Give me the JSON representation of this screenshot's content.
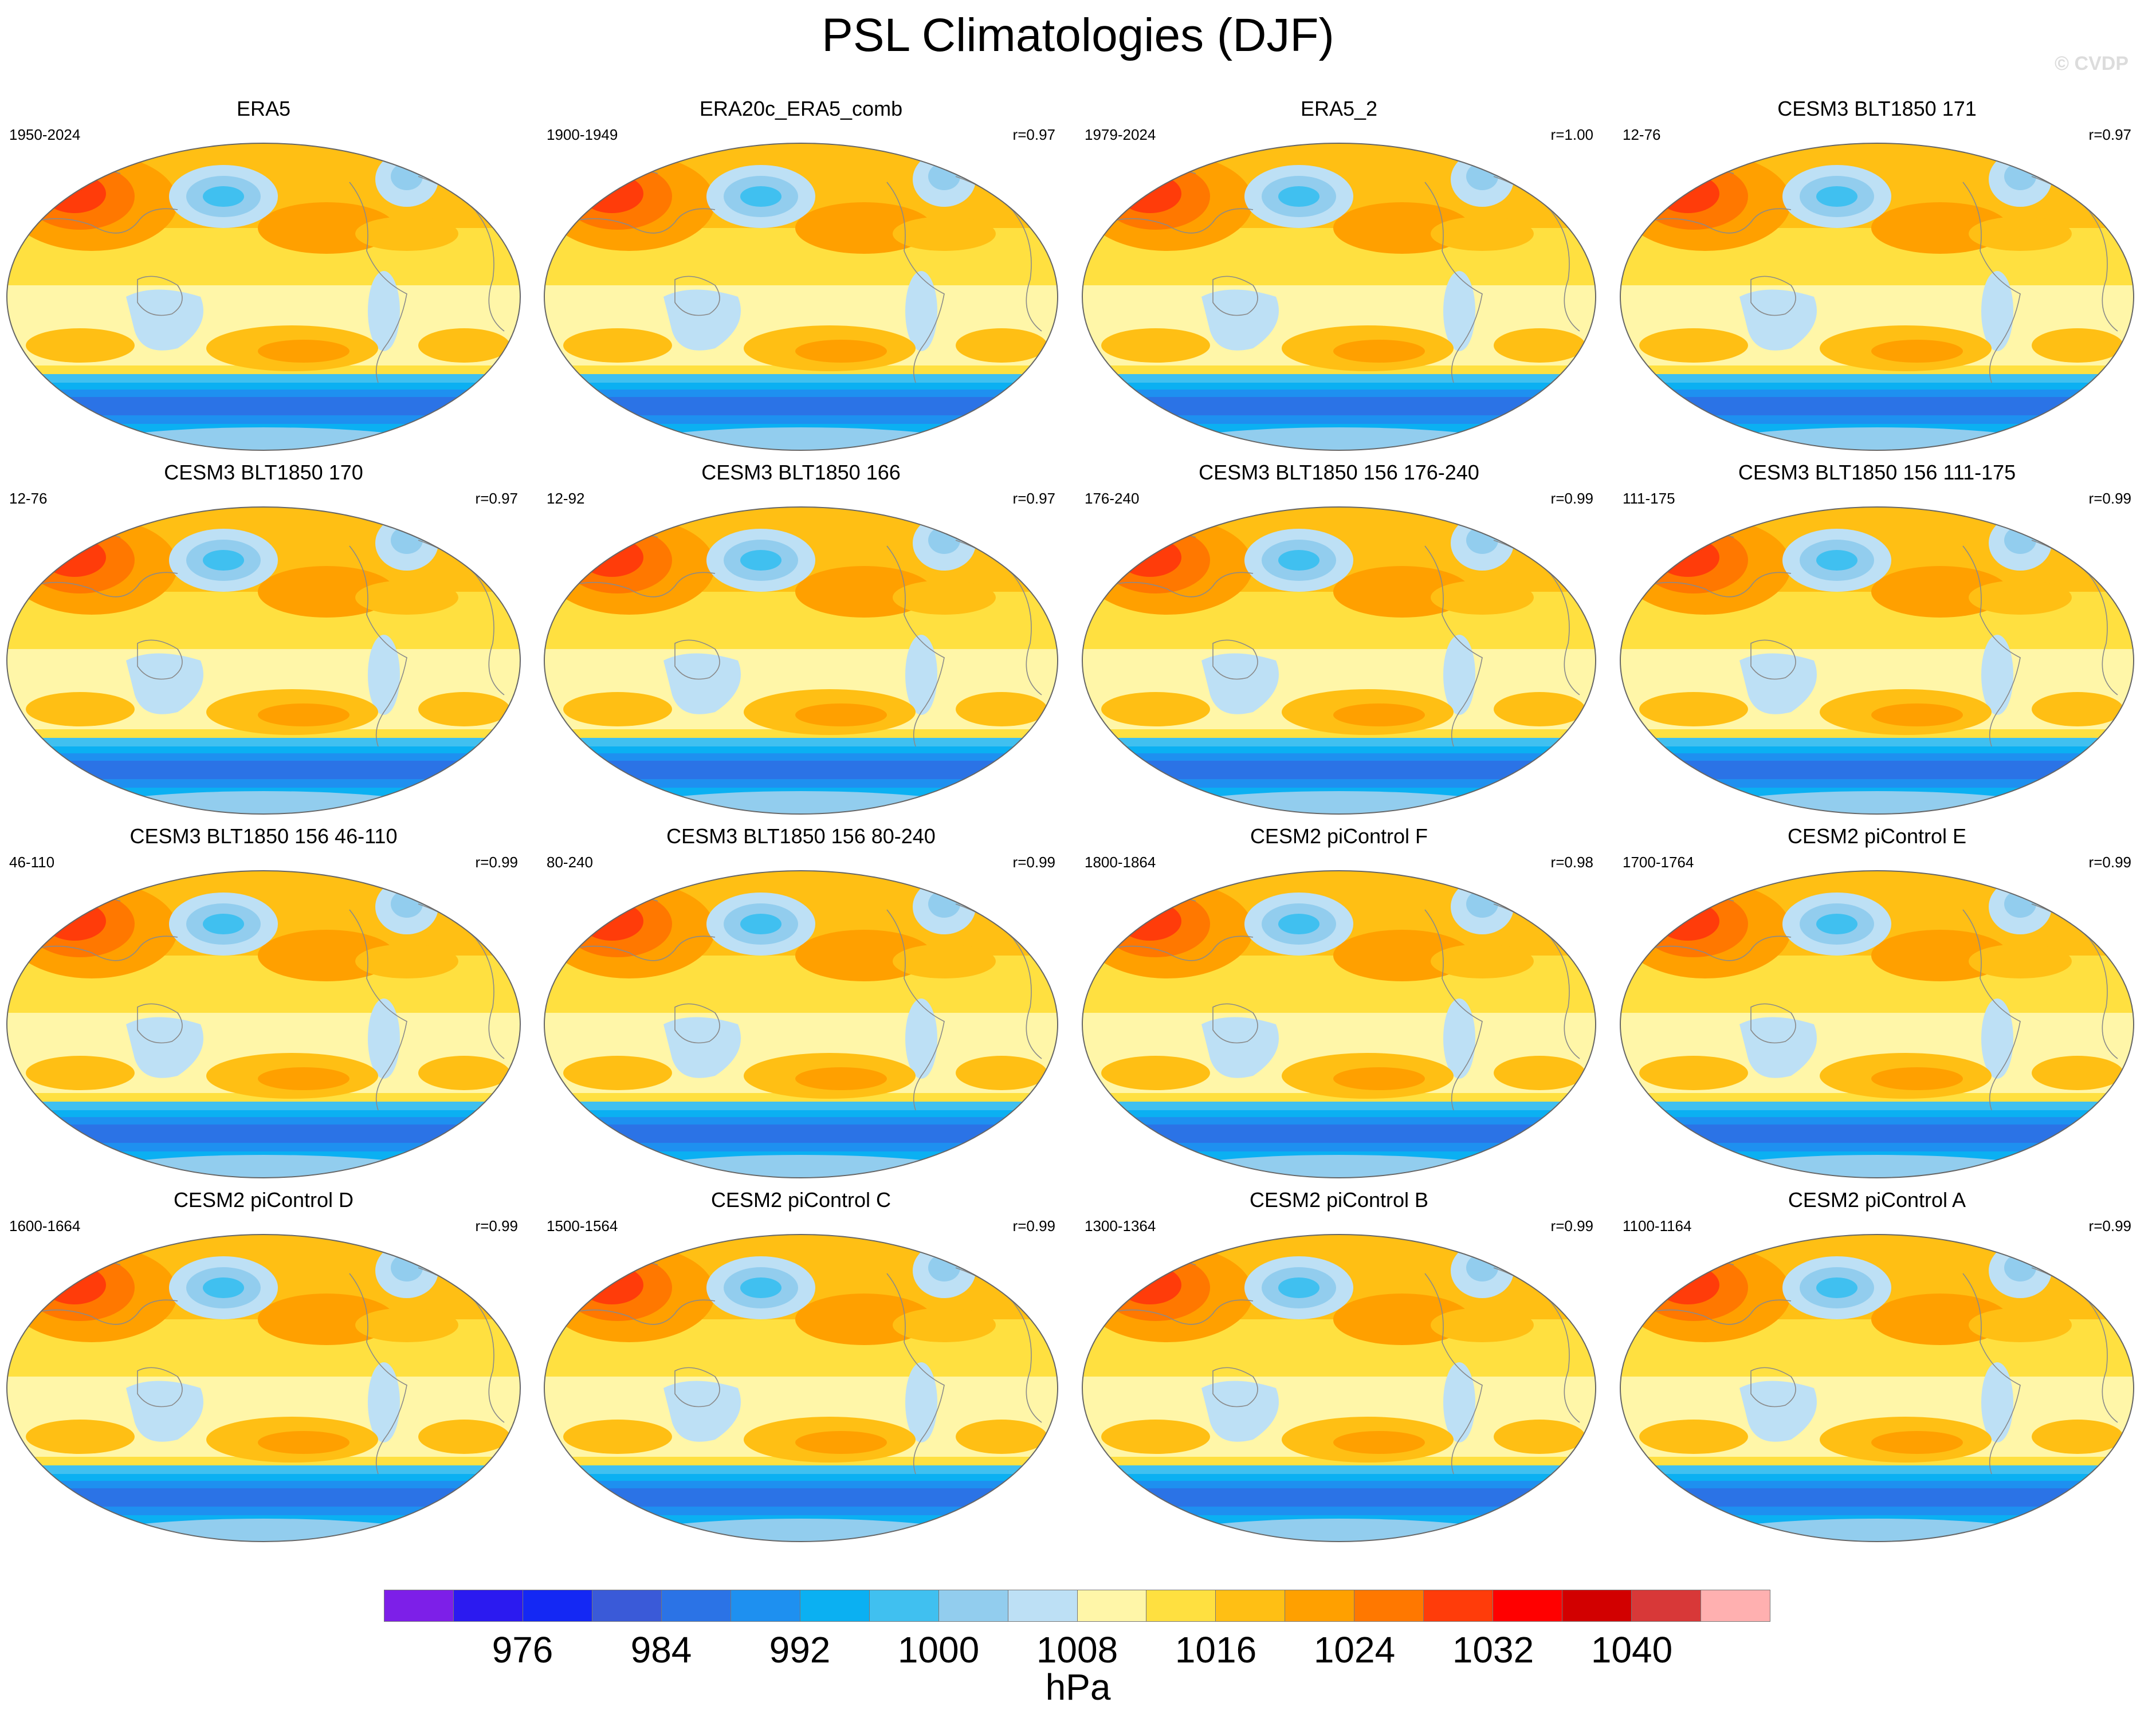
{
  "figure": {
    "title": "PSL Climatologies (DJF)",
    "watermark": "© CVDP",
    "units": "hPa"
  },
  "panels": [
    {
      "title": "ERA5",
      "years": "1950-2024",
      "r": ""
    },
    {
      "title": "ERA20c_ERA5_comb",
      "years": "1900-1949",
      "r": "r=0.97"
    },
    {
      "title": "ERA5_2",
      "years": "1979-2024",
      "r": "r=1.00"
    },
    {
      "title": "CESM3 BLT1850 171",
      "years": "12-76",
      "r": "r=0.97"
    },
    {
      "title": "CESM3 BLT1850 170",
      "years": "12-76",
      "r": "r=0.97"
    },
    {
      "title": "CESM3 BLT1850 166",
      "years": "12-92",
      "r": "r=0.97"
    },
    {
      "title": "CESM3 BLT1850 156 176-240",
      "years": "176-240",
      "r": "r=0.99"
    },
    {
      "title": "CESM3 BLT1850 156 111-175",
      "years": "111-175",
      "r": "r=0.99"
    },
    {
      "title": "CESM3 BLT1850 156 46-110",
      "years": "46-110",
      "r": "r=0.99"
    },
    {
      "title": "CESM3 BLT1850 156 80-240",
      "years": "80-240",
      "r": "r=0.99"
    },
    {
      "title": "CESM2 piControl F",
      "years": "1800-1864",
      "r": "r=0.98"
    },
    {
      "title": "CESM2 piControl E",
      "years": "1700-1764",
      "r": "r=0.99"
    },
    {
      "title": "CESM2 piControl D",
      "years": "1600-1664",
      "r": "r=0.99"
    },
    {
      "title": "CESM2 piControl C",
      "years": "1500-1564",
      "r": "r=0.99"
    },
    {
      "title": "CESM2 piControl B",
      "years": "1300-1364",
      "r": "r=0.99"
    },
    {
      "title": "CESM2 piControl A",
      "years": "1100-1164",
      "r": "r=0.99"
    }
  ],
  "colorbar": {
    "colors": [
      "#7d1fe8",
      "#2b1af0",
      "#1428f4",
      "#3a5ad8",
      "#2b73e6",
      "#1e90f0",
      "#0bb0f2",
      "#40c0f0",
      "#92cdee",
      "#bde0f5",
      "#fff6a8",
      "#ffe040",
      "#ffbf14",
      "#ffa000",
      "#ff7800",
      "#ff3c0a",
      "#ff0000",
      "#d20000",
      "#d83838",
      "#ffb0b0"
    ],
    "labels": [
      "976",
      "984",
      "992",
      "1000",
      "1008",
      "1016",
      "1024",
      "1032",
      "1040"
    ]
  }
}
